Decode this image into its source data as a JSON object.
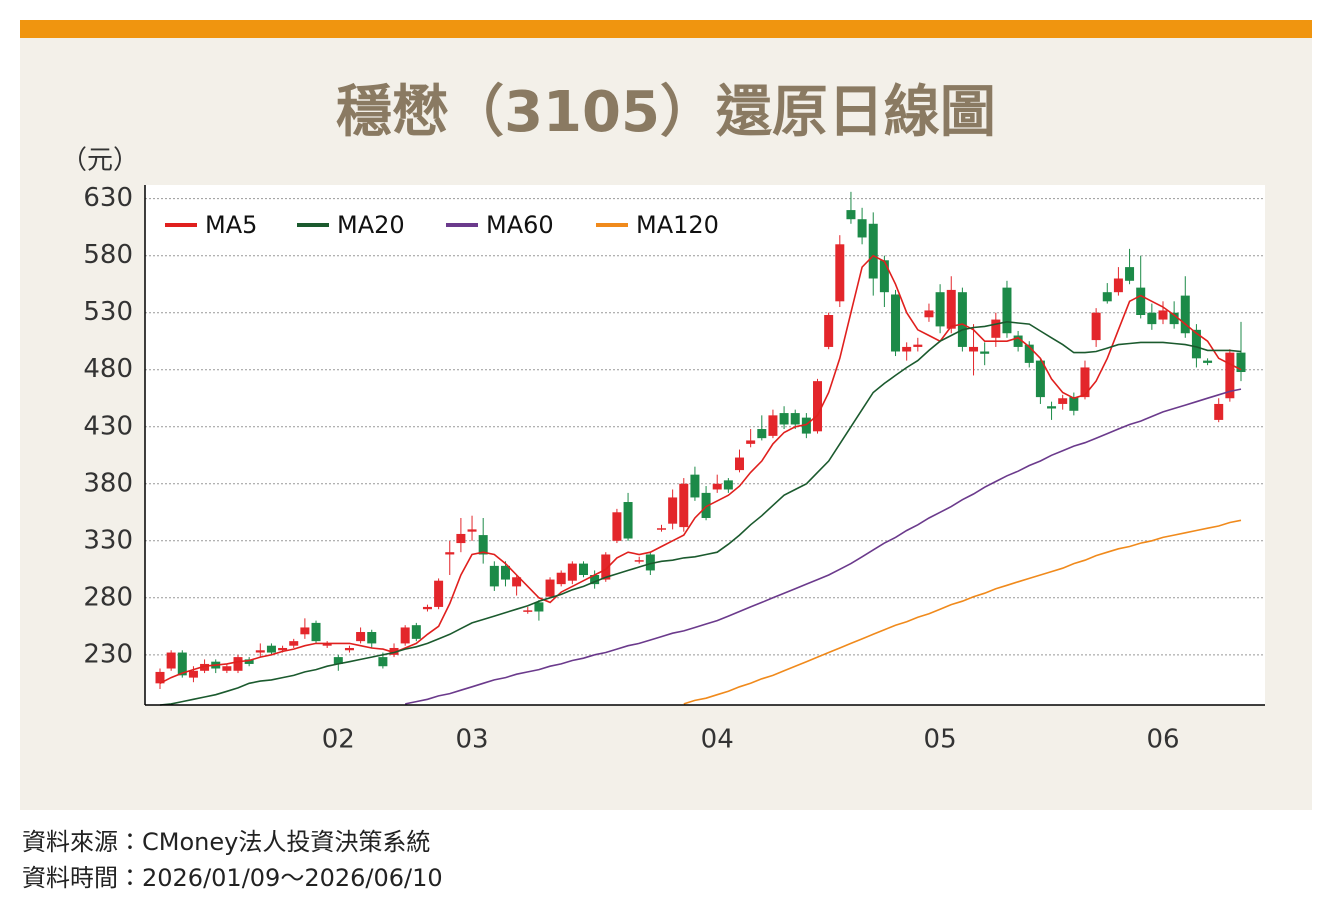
{
  "chart_data": {
    "type": "candlestick",
    "title": "穩懋（3105）還原日線圖",
    "y_label": "（元）",
    "categories": [
      null,
      null,
      null,
      null,
      null,
      null,
      null,
      null,
      null,
      null,
      null,
      null,
      null,
      null,
      null,
      null,
      "02",
      null,
      null,
      null,
      null,
      null,
      null,
      null,
      null,
      null,
      null,
      null,
      "03",
      null,
      null,
      null,
      null,
      null,
      null,
      null,
      null,
      null,
      null,
      null,
      null,
      null,
      null,
      null,
      null,
      null,
      null,
      null,
      null,
      null,
      "04",
      null,
      null,
      null,
      null,
      null,
      null,
      null,
      null,
      null,
      null,
      null,
      null,
      null,
      null,
      null,
      null,
      null,
      null,
      null,
      "05",
      null,
      null,
      null,
      null,
      null,
      null,
      null,
      null,
      null,
      null,
      null,
      null,
      null,
      null,
      null,
      null,
      null,
      null,
      null,
      "06",
      null,
      null,
      null,
      null,
      null,
      null,
      null
    ],
    "open": [
      205,
      218,
      232,
      210,
      216,
      224,
      216,
      216,
      226,
      232,
      238,
      234,
      238,
      248,
      258,
      238,
      228,
      234,
      242,
      250,
      228,
      230,
      240,
      256,
      270,
      272,
      318,
      328,
      338,
      335,
      308,
      308,
      290,
      268,
      276,
      281,
      292,
      295,
      310,
      300,
      296,
      330,
      364,
      312,
      318,
      340,
      345,
      342,
      388,
      372,
      375,
      383,
      392,
      415,
      428,
      422,
      442,
      442,
      438,
      426,
      500,
      540,
      620,
      612,
      608,
      576,
      546,
      496,
      500,
      526,
      548,
      516,
      548,
      496,
      496,
      508,
      552,
      510,
      502,
      488,
      448,
      450,
      456,
      456,
      506,
      548,
      548,
      570,
      552,
      530,
      524,
      530,
      545,
      515,
      488,
      436,
      455,
      495
    ],
    "high": [
      218,
      234,
      234,
      220,
      226,
      226,
      222,
      230,
      228,
      240,
      240,
      238,
      244,
      262,
      260,
      242,
      230,
      238,
      254,
      252,
      232,
      240,
      256,
      258,
      274,
      297,
      330,
      350,
      352,
      350,
      312,
      312,
      300,
      272,
      278,
      298,
      304,
      312,
      312,
      304,
      320,
      358,
      372,
      316,
      320,
      344,
      375,
      385,
      395,
      378,
      388,
      385,
      410,
      428,
      440,
      445,
      448,
      445,
      442,
      472,
      530,
      598,
      636,
      622,
      618,
      580,
      550,
      504,
      508,
      538,
      555,
      562,
      552,
      520,
      504,
      530,
      558,
      514,
      505,
      490,
      452,
      458,
      460,
      488,
      534,
      556,
      570,
      586,
      580,
      538,
      540,
      540,
      562,
      520,
      490,
      455,
      498,
      522
    ],
    "low": [
      200,
      216,
      210,
      206,
      214,
      214,
      214,
      214,
      220,
      228,
      230,
      232,
      236,
      244,
      240,
      236,
      216,
      232,
      240,
      236,
      218,
      228,
      238,
      242,
      268,
      270,
      300,
      320,
      330,
      310,
      286,
      290,
      282,
      266,
      260,
      280,
      290,
      292,
      298,
      288,
      294,
      328,
      330,
      310,
      300,
      338,
      340,
      338,
      365,
      348,
      372,
      372,
      390,
      412,
      418,
      420,
      428,
      428,
      420,
      424,
      498,
      535,
      608,
      590,
      545,
      535,
      492,
      488,
      496,
      522,
      512,
      512,
      496,
      475,
      484,
      500,
      508,
      496,
      482,
      450,
      436,
      445,
      440,
      454,
      500,
      538,
      545,
      555,
      525,
      515,
      520,
      516,
      508,
      482,
      484,
      434,
      452,
      470
    ],
    "close": [
      215,
      232,
      212,
      216,
      222,
      218,
      220,
      228,
      222,
      234,
      232,
      236,
      242,
      254,
      242,
      240,
      222,
      236,
      250,
      240,
      220,
      236,
      254,
      244,
      272,
      295,
      320,
      336,
      340,
      318,
      290,
      296,
      298,
      269,
      268,
      296,
      302,
      310,
      300,
      292,
      318,
      355,
      332,
      313,
      304,
      341,
      368,
      380,
      368,
      350,
      380,
      375,
      403,
      418,
      420,
      440,
      432,
      432,
      424,
      470,
      528,
      590,
      612,
      596,
      560,
      548,
      496,
      500,
      502,
      532,
      518,
      550,
      500,
      500,
      494,
      524,
      512,
      500,
      486,
      456,
      446,
      455,
      444,
      482,
      530,
      540,
      560,
      558,
      528,
      520,
      532,
      520,
      512,
      490,
      486,
      450,
      495,
      478
    ],
    "up_color": "#e3262b",
    "down_color": "#1c8a48",
    "series": [
      {
        "name": "MA5",
        "color": "#e0201e",
        "values": [
          205,
          210,
          214,
          217,
          220,
          221,
          222,
          224,
          225,
          228,
          230,
          233,
          235,
          238,
          240,
          240,
          240,
          240,
          238,
          236,
          235,
          232,
          236,
          240,
          248,
          255,
          275,
          300,
          318,
          320,
          318,
          310,
          300,
          290,
          280,
          276,
          285,
          290,
          295,
          300,
          305,
          315,
          320,
          318,
          320,
          325,
          330,
          335,
          350,
          360,
          365,
          370,
          378,
          390,
          400,
          415,
          425,
          430,
          432,
          440,
          460,
          490,
          530,
          570,
          580,
          575,
          555,
          530,
          515,
          510,
          505,
          518,
          520,
          515,
          505,
          505,
          505,
          508,
          500,
          490,
          472,
          460,
          455,
          458,
          470,
          490,
          515,
          540,
          545,
          540,
          535,
          528,
          520,
          512,
          505,
          490,
          485,
          480
        ]
      },
      {
        "name": "MA20",
        "color": "#1b5a2e",
        "values": [
          186,
          187,
          189,
          191,
          193,
          195,
          198,
          201,
          205,
          207,
          208,
          210,
          212,
          215,
          217,
          220,
          222,
          224,
          226,
          228,
          230,
          232,
          235,
          237,
          240,
          244,
          248,
          253,
          258,
          261,
          264,
          267,
          270,
          273,
          277,
          280,
          283,
          287,
          290,
          294,
          298,
          301,
          304,
          307,
          310,
          312,
          313,
          315,
          316,
          318,
          320,
          327,
          335,
          344,
          352,
          361,
          370,
          375,
          380,
          390,
          400,
          415,
          430,
          445,
          460,
          468,
          475,
          482,
          488,
          497,
          505,
          510,
          515,
          517,
          518,
          520,
          522,
          521,
          520,
          514,
          508,
          502,
          495,
          495,
          496,
          499,
          502,
          503,
          504,
          504,
          504,
          503,
          502,
          500,
          497,
          497,
          497,
          496
        ]
      },
      {
        "name": "MA60",
        "color": "#6b3a8c",
        "values": [
          null,
          null,
          null,
          null,
          null,
          null,
          null,
          null,
          null,
          null,
          null,
          null,
          null,
          null,
          null,
          null,
          null,
          null,
          null,
          null,
          null,
          null,
          187,
          189,
          191,
          194,
          196,
          199,
          202,
          205,
          208,
          210,
          213,
          215,
          217,
          220,
          222,
          225,
          227,
          230,
          232,
          235,
          238,
          240,
          243,
          246,
          249,
          251,
          254,
          257,
          260,
          264,
          268,
          272,
          276,
          280,
          284,
          288,
          292,
          296,
          300,
          305,
          310,
          316,
          322,
          328,
          333,
          339,
          344,
          350,
          355,
          360,
          366,
          371,
          377,
          382,
          387,
          391,
          396,
          400,
          405,
          409,
          413,
          416,
          420,
          424,
          428,
          432,
          435,
          439,
          443,
          446,
          449,
          452,
          455,
          458,
          461,
          463
        ]
      },
      {
        "name": "MA120",
        "color": "#f08a1c",
        "values": [
          null,
          null,
          null,
          null,
          null,
          null,
          null,
          null,
          null,
          null,
          null,
          null,
          null,
          null,
          null,
          null,
          null,
          null,
          null,
          null,
          null,
          null,
          null,
          null,
          null,
          null,
          null,
          null,
          null,
          null,
          null,
          null,
          null,
          null,
          null,
          null,
          null,
          null,
          null,
          null,
          null,
          null,
          null,
          null,
          null,
          null,
          null,
          187,
          190,
          192,
          195,
          198,
          202,
          205,
          209,
          212,
          216,
          220,
          224,
          228,
          232,
          236,
          240,
          244,
          248,
          252,
          256,
          259,
          263,
          266,
          270,
          274,
          277,
          281,
          284,
          288,
          291,
          294,
          297,
          300,
          303,
          306,
          310,
          313,
          317,
          320,
          323,
          325,
          328,
          330,
          333,
          335,
          337,
          339,
          341,
          343,
          346,
          348
        ]
      }
    ],
    "ylim": [
      186,
      642
    ],
    "yticks": [
      230,
      280,
      330,
      380,
      430,
      480,
      530,
      580,
      630
    ],
    "grid": true,
    "legend": "upper left"
  },
  "notes": [
    "資料來源：CMoney法人投資決策系統",
    "資料時間：2026/01/09～2026/06/10"
  ]
}
